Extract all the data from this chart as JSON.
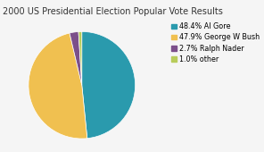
{
  "title": "2000 US Presidential Election Popular Vote Results",
  "labels": [
    "48.4% Al Gore",
    "47.9% George W Bush",
    "2.7% Ralph Nader",
    "1.0% other"
  ],
  "values": [
    48.4,
    47.9,
    2.7,
    1.0
  ],
  "colors": [
    "#2a9aad",
    "#f0c050",
    "#7b4f8a",
    "#b8cc5a"
  ],
  "startangle": 90,
  "background_color": "#f5f5f5",
  "title_fontsize": 7.0,
  "legend_fontsize": 5.8
}
